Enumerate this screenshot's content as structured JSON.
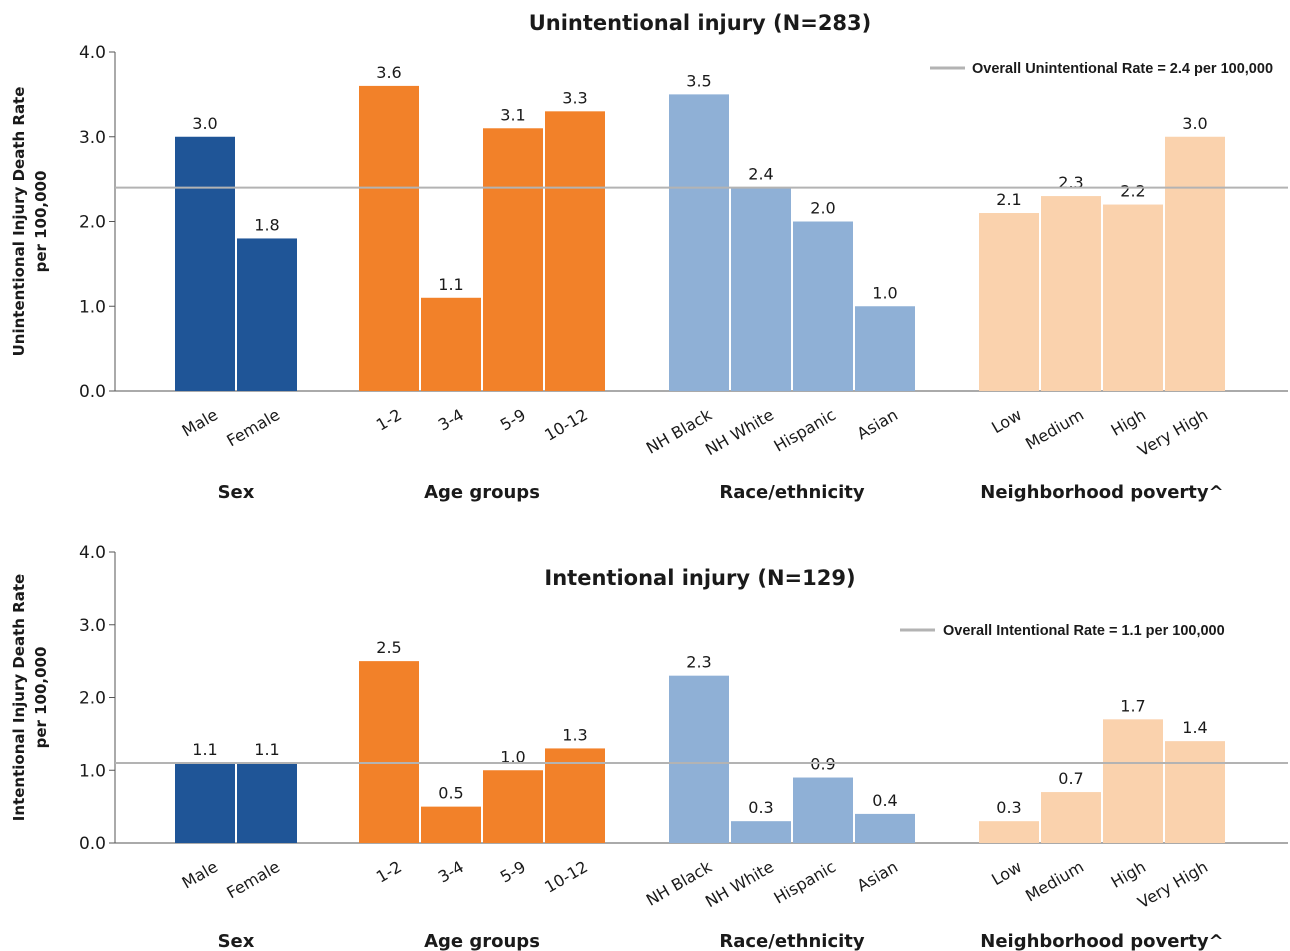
{
  "chart_data": [
    {
      "type": "bar",
      "title": "Unintentional injury (N=283)",
      "ylabel": [
        "Unintentional Injury Death Rate",
        "per 100,000"
      ],
      "ylim": [
        0,
        4
      ],
      "yticks": [
        "0.0",
        "1.0",
        "2.0",
        "3.0",
        "4.0"
      ],
      "reference_line": {
        "value": 2.4,
        "label": "Overall Unintentional Rate = 2.4 per 100,000",
        "color": "#b3b3b3"
      },
      "groups": [
        {
          "name": "Sex",
          "color": "#1f5597",
          "categories": [
            "Male",
            "Female"
          ],
          "values": [
            3.0,
            1.8
          ],
          "labels": [
            "3.0",
            "1.8"
          ]
        },
        {
          "name": "Age groups",
          "color": "#f28129",
          "categories": [
            "1-2",
            "3-4",
            "5-9",
            "10-12"
          ],
          "values": [
            3.6,
            1.1,
            3.1,
            3.3
          ],
          "labels": [
            "3.6",
            "1.1",
            "3.1",
            "3.3"
          ]
        },
        {
          "name": "Race/ethnicity",
          "color": "#8fb0d6",
          "categories": [
            "NH Black",
            "NH White",
            "Hispanic",
            "Asian"
          ],
          "values": [
            3.5,
            2.4,
            2.0,
            1.0
          ],
          "labels": [
            "3.5",
            "2.4",
            "2.0",
            "1.0"
          ]
        },
        {
          "name": "Neighborhood poverty^",
          "color": "#fad2ad",
          "categories": [
            "Low",
            "Medium",
            "High",
            "Very High"
          ],
          "values": [
            2.1,
            2.3,
            2.2,
            3.0
          ],
          "labels": [
            "2.1",
            "2.3",
            "2.2",
            "3.0"
          ]
        }
      ]
    },
    {
      "type": "bar",
      "title": "Intentional injury (N=129)",
      "ylabel": [
        "Intentional Injury Death Rate",
        "per 100,000"
      ],
      "ylim": [
        0,
        4
      ],
      "yticks": [
        "0.0",
        "1.0",
        "2.0",
        "3.0",
        "4.0"
      ],
      "reference_line": {
        "value": 1.1,
        "label": "Overall Intentional Rate = 1.1 per 100,000",
        "color": "#b3b3b3"
      },
      "groups": [
        {
          "name": "Sex",
          "color": "#1f5597",
          "categories": [
            "Male",
            "Female"
          ],
          "values": [
            1.1,
            1.1
          ],
          "labels": [
            "1.1",
            "1.1"
          ]
        },
        {
          "name": "Age groups",
          "color": "#f28129",
          "categories": [
            "1-2",
            "3-4",
            "5-9",
            "10-12"
          ],
          "values": [
            2.5,
            0.5,
            1.0,
            1.3
          ],
          "labels": [
            "2.5",
            "0.5",
            "1.0",
            "1.3"
          ]
        },
        {
          "name": "Race/ethnicity",
          "color": "#8fb0d6",
          "categories": [
            "NH Black",
            "NH White",
            "Hispanic",
            "Asian"
          ],
          "values": [
            2.3,
            0.3,
            0.9,
            0.4
          ],
          "labels": [
            "2.3",
            "0.3",
            "0.9",
            "0.4"
          ]
        },
        {
          "name": "Neighborhood poverty^",
          "color": "#fad2ad",
          "categories": [
            "Low",
            "Medium",
            "High",
            "Very High"
          ],
          "values": [
            0.3,
            0.7,
            1.7,
            1.4
          ],
          "labels": [
            "0.3",
            "0.7",
            "1.7",
            "1.4"
          ]
        }
      ]
    }
  ]
}
